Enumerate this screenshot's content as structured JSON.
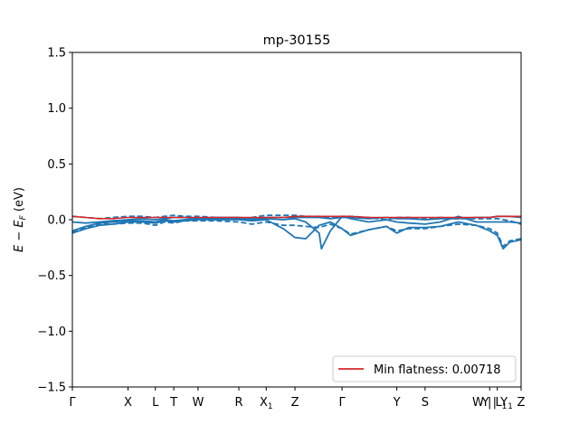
{
  "chart_data": {
    "type": "line",
    "title": "mp-30155",
    "xlabel": "",
    "ylabel": "E − E_F (eV)",
    "ylabel_parts": {
      "main": "E − E",
      "sub": "F",
      "unit": " (eV)"
    },
    "ylim": [
      -1.5,
      1.5
    ],
    "yticks": [
      -1.5,
      -1.0,
      -0.5,
      0.0,
      0.5,
      1.0,
      1.5
    ],
    "ytick_labels": [
      "−1.5",
      "−1.0",
      "−0.5",
      "0.0",
      "0.5",
      "1.0",
      "1.5"
    ],
    "xlim": [
      0,
      1
    ],
    "xticks": [
      {
        "pos": 0.0,
        "label": "Γ"
      },
      {
        "pos": 0.124,
        "label": "X"
      },
      {
        "pos": 0.185,
        "label": "L"
      },
      {
        "pos": 0.226,
        "label": "T"
      },
      {
        "pos": 0.28,
        "label": "W"
      },
      {
        "pos": 0.371,
        "label": "R"
      },
      {
        "pos": 0.432,
        "label": "X",
        "sub": "1"
      },
      {
        "pos": 0.496,
        "label": "Z"
      },
      {
        "pos": 0.601,
        "label": "Γ"
      },
      {
        "pos": 0.723,
        "label": "Y"
      },
      {
        "pos": 0.786,
        "label": "S"
      },
      {
        "pos": 0.93,
        "label": "W | L",
        "sub": "1"
      },
      {
        "pos": 0.947,
        "label": "Y | Y",
        "sub": "1"
      },
      {
        "pos": 1.0,
        "label": "Z"
      }
    ],
    "grid": false,
    "legend": {
      "placement": "lower-right",
      "entries": [
        {
          "label": "Min flatness: 0.00718",
          "color": "#d62728"
        }
      ]
    },
    "colors": {
      "bands": "#1f77b4",
      "flat_band": "#d62728"
    },
    "series": [
      {
        "style": "solid",
        "color": "#1f77b4",
        "points": [
          [
            0,
            -0.12
          ],
          [
            0.03,
            -0.08
          ],
          [
            0.06,
            -0.05
          ],
          [
            0.09,
            -0.04
          ],
          [
            0.124,
            -0.02
          ],
          [
            0.155,
            -0.02
          ],
          [
            0.185,
            -0.03
          ],
          [
            0.205,
            -0.01
          ],
          [
            0.226,
            -0.02
          ],
          [
            0.25,
            -0.01
          ],
          [
            0.28,
            0.0
          ],
          [
            0.32,
            0.0
          ],
          [
            0.371,
            0.0
          ],
          [
            0.4,
            -0.01
          ],
          [
            0.432,
            0.0
          ],
          [
            0.47,
            -0.08
          ],
          [
            0.496,
            -0.16
          ],
          [
            0.52,
            -0.17
          ],
          [
            0.55,
            -0.05
          ],
          [
            0.575,
            -0.02
          ],
          [
            0.601,
            -0.08
          ],
          [
            0.62,
            -0.14
          ],
          [
            0.66,
            -0.09
          ],
          [
            0.7,
            -0.06
          ],
          [
            0.723,
            -0.12
          ],
          [
            0.75,
            -0.07
          ],
          [
            0.786,
            -0.07
          ],
          [
            0.82,
            -0.06
          ],
          [
            0.86,
            -0.02
          ],
          [
            0.9,
            -0.05
          ],
          [
            0.93,
            -0.1
          ],
          [
            0.947,
            -0.14
          ],
          [
            0.96,
            -0.26
          ],
          [
            0.975,
            -0.2
          ],
          [
            1.0,
            -0.18
          ]
        ]
      },
      {
        "style": "solid",
        "color": "#1f77b4",
        "points": [
          [
            0,
            -0.1
          ],
          [
            0.03,
            -0.06
          ],
          [
            0.06,
            -0.03
          ],
          [
            0.09,
            -0.02
          ],
          [
            0.124,
            -0.01
          ],
          [
            0.155,
            -0.01
          ],
          [
            0.185,
            -0.02
          ],
          [
            0.205,
            0.0
          ],
          [
            0.226,
            -0.01
          ],
          [
            0.25,
            0.0
          ],
          [
            0.28,
            0.01
          ],
          [
            0.32,
            0.01
          ],
          [
            0.371,
            0.01
          ],
          [
            0.4,
            0.0
          ],
          [
            0.432,
            0.01
          ],
          [
            0.47,
            0.0
          ],
          [
            0.496,
            0.01
          ],
          [
            0.52,
            -0.02
          ],
          [
            0.55,
            -0.12
          ],
          [
            0.555,
            -0.26
          ],
          [
            0.575,
            -0.1
          ],
          [
            0.601,
            0.03
          ],
          [
            0.62,
            0.01
          ],
          [
            0.66,
            -0.02
          ],
          [
            0.7,
            0.0
          ],
          [
            0.723,
            -0.02
          ],
          [
            0.75,
            -0.03
          ],
          [
            0.786,
            -0.04
          ],
          [
            0.82,
            -0.02
          ],
          [
            0.86,
            0.03
          ],
          [
            0.9,
            -0.02
          ],
          [
            0.93,
            -0.02
          ],
          [
            0.947,
            -0.02
          ],
          [
            0.96,
            -0.02
          ],
          [
            0.975,
            -0.02
          ],
          [
            1.0,
            -0.03
          ]
        ]
      },
      {
        "style": "solid",
        "color": "#1f77b4",
        "points": [
          [
            0,
            -0.02
          ],
          [
            0.03,
            -0.03
          ],
          [
            0.06,
            -0.02
          ],
          [
            0.09,
            -0.01
          ],
          [
            0.124,
            0.0
          ],
          [
            0.155,
            0.01
          ],
          [
            0.185,
            0.0
          ],
          [
            0.205,
            0.01
          ],
          [
            0.226,
            0.02
          ],
          [
            0.25,
            0.02
          ],
          [
            0.28,
            0.01
          ],
          [
            0.32,
            0.02
          ],
          [
            0.371,
            0.02
          ],
          [
            0.4,
            0.01
          ],
          [
            0.432,
            0.02
          ],
          [
            0.47,
            0.02
          ],
          [
            0.496,
            0.02
          ],
          [
            0.52,
            0.02
          ],
          [
            0.55,
            0.02
          ],
          [
            0.575,
            0.01
          ],
          [
            0.601,
            0.02
          ],
          [
            0.62,
            0.02
          ],
          [
            0.66,
            0.01
          ],
          [
            0.7,
            0.02
          ],
          [
            0.723,
            0.01
          ],
          [
            0.75,
            0.01
          ],
          [
            0.786,
            0.0
          ],
          [
            0.82,
            0.01
          ],
          [
            0.86,
            0.01
          ],
          [
            0.9,
            0.02
          ],
          [
            0.93,
            0.02
          ],
          [
            0.947,
            0.03
          ],
          [
            0.96,
            0.03
          ],
          [
            0.975,
            0.03
          ],
          [
            1.0,
            0.02
          ]
        ]
      },
      {
        "style": "dashed",
        "color": "#1f77b4",
        "points": [
          [
            0,
            -0.11
          ],
          [
            0.03,
            -0.07
          ],
          [
            0.06,
            -0.04
          ],
          [
            0.09,
            -0.04
          ],
          [
            0.124,
            -0.03
          ],
          [
            0.155,
            -0.03
          ],
          [
            0.185,
            -0.05
          ],
          [
            0.205,
            -0.02
          ],
          [
            0.226,
            -0.03
          ],
          [
            0.25,
            -0.01
          ],
          [
            0.28,
            -0.01
          ],
          [
            0.32,
            -0.01
          ],
          [
            0.371,
            -0.02
          ],
          [
            0.4,
            -0.04
          ],
          [
            0.432,
            -0.02
          ],
          [
            0.47,
            -0.05
          ],
          [
            0.496,
            -0.05
          ],
          [
            0.52,
            -0.06
          ],
          [
            0.55,
            -0.07
          ],
          [
            0.575,
            -0.04
          ],
          [
            0.601,
            -0.08
          ],
          [
            0.62,
            -0.13
          ],
          [
            0.66,
            -0.09
          ],
          [
            0.7,
            -0.06
          ],
          [
            0.723,
            -0.1
          ],
          [
            0.75,
            -0.08
          ],
          [
            0.786,
            -0.08
          ],
          [
            0.82,
            -0.06
          ],
          [
            0.86,
            -0.04
          ],
          [
            0.9,
            -0.05
          ],
          [
            0.93,
            -0.08
          ],
          [
            0.947,
            -0.12
          ],
          [
            0.96,
            -0.24
          ],
          [
            0.975,
            -0.19
          ],
          [
            1.0,
            -0.17
          ]
        ]
      },
      {
        "style": "dashed",
        "color": "#1f77b4",
        "points": [
          [
            0,
            0.03
          ],
          [
            0.03,
            0.02
          ],
          [
            0.06,
            0.01
          ],
          [
            0.09,
            0.02
          ],
          [
            0.124,
            0.03
          ],
          [
            0.155,
            0.03
          ],
          [
            0.185,
            0.02
          ],
          [
            0.205,
            0.03
          ],
          [
            0.226,
            0.04
          ],
          [
            0.25,
            0.03
          ],
          [
            0.28,
            0.03
          ],
          [
            0.32,
            0.02
          ],
          [
            0.371,
            0.01
          ],
          [
            0.4,
            0.02
          ],
          [
            0.432,
            0.04
          ],
          [
            0.47,
            0.04
          ],
          [
            0.496,
            0.04
          ],
          [
            0.52,
            0.03
          ],
          [
            0.55,
            0.03
          ],
          [
            0.575,
            0.02
          ],
          [
            0.601,
            0.03
          ],
          [
            0.62,
            0.03
          ],
          [
            0.66,
            0.02
          ],
          [
            0.7,
            0.0
          ],
          [
            0.723,
            0.02
          ],
          [
            0.75,
            0.02
          ],
          [
            0.786,
            0.01
          ],
          [
            0.82,
            0.02
          ],
          [
            0.86,
            0.01
          ],
          [
            0.9,
            0.01
          ],
          [
            0.93,
            0.01
          ],
          [
            0.947,
            0.01
          ],
          [
            0.96,
            0.0
          ],
          [
            0.975,
            -0.01
          ],
          [
            1.0,
            -0.04
          ]
        ]
      },
      {
        "style": "solid",
        "color": "#d62728",
        "points": [
          [
            0,
            0.03
          ],
          [
            0.03,
            0.02
          ],
          [
            0.06,
            0.01
          ],
          [
            0.09,
            0.01
          ],
          [
            0.124,
            0.02
          ],
          [
            0.155,
            0.02
          ],
          [
            0.185,
            0.02
          ],
          [
            0.205,
            0.02
          ],
          [
            0.226,
            0.02
          ],
          [
            0.25,
            0.02
          ],
          [
            0.28,
            0.02
          ],
          [
            0.32,
            0.02
          ],
          [
            0.371,
            0.02
          ],
          [
            0.4,
            0.02
          ],
          [
            0.432,
            0.02
          ],
          [
            0.47,
            0.02
          ],
          [
            0.496,
            0.03
          ],
          [
            0.52,
            0.03
          ],
          [
            0.55,
            0.03
          ],
          [
            0.575,
            0.03
          ],
          [
            0.601,
            0.03
          ],
          [
            0.62,
            0.03
          ],
          [
            0.66,
            0.02
          ],
          [
            0.7,
            0.02
          ],
          [
            0.723,
            0.02
          ],
          [
            0.75,
            0.02
          ],
          [
            0.786,
            0.02
          ],
          [
            0.82,
            0.02
          ],
          [
            0.86,
            0.02
          ],
          [
            0.9,
            0.02
          ],
          [
            0.93,
            0.02
          ],
          [
            0.947,
            0.03
          ],
          [
            0.96,
            0.03
          ],
          [
            0.975,
            0.03
          ],
          [
            1.0,
            0.03
          ]
        ]
      }
    ]
  }
}
